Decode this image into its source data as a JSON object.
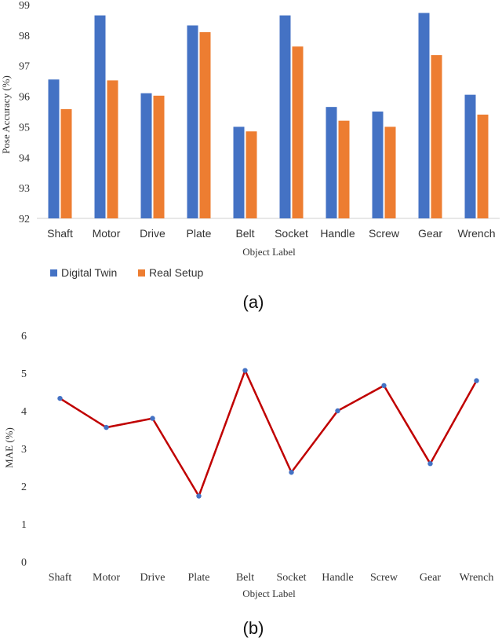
{
  "chart_data": [
    {
      "type": "bar",
      "panel_label": "(a)",
      "xlabel": "Object Label",
      "ylabel": "Pose Accuracy (%)",
      "ylim": [
        92,
        99
      ],
      "yticks": [
        92,
        93,
        94,
        95,
        96,
        97,
        98,
        99
      ],
      "grid": false,
      "legend_position": "bottom-left",
      "categories": [
        "Shaft",
        "Motor",
        "Drive",
        "Plate",
        "Belt",
        "Socket",
        "Handle",
        "Screw",
        "Gear",
        "Wrench"
      ],
      "series": [
        {
          "name": "Digital Twin",
          "color": "#4472C4",
          "values": [
            96.55,
            98.65,
            96.1,
            98.32,
            95.0,
            98.65,
            95.65,
            95.5,
            98.73,
            96.05
          ]
        },
        {
          "name": "Real Setup",
          "color": "#ED7D31",
          "values": [
            95.58,
            96.52,
            96.02,
            98.1,
            94.85,
            97.63,
            95.2,
            95.0,
            97.35,
            95.4
          ]
        }
      ]
    },
    {
      "type": "line",
      "panel_label": "(b)",
      "xlabel": "Object Label",
      "ylabel": "MAE (%)",
      "ylim": [
        0,
        6
      ],
      "yticks": [
        0,
        1,
        2,
        3,
        4,
        5,
        6
      ],
      "grid": false,
      "categories": [
        "Shaft",
        "Motor",
        "Drive",
        "Plate",
        "Belt",
        "Socket",
        "Handle",
        "Screw",
        "Gear",
        "Wrench"
      ],
      "series": [
        {
          "line_color": "#C00000",
          "marker_color": "#4472C4",
          "values": [
            4.33,
            3.56,
            3.8,
            1.74,
            5.07,
            2.37,
            4.0,
            4.67,
            2.6,
            4.8
          ]
        }
      ]
    }
  ]
}
